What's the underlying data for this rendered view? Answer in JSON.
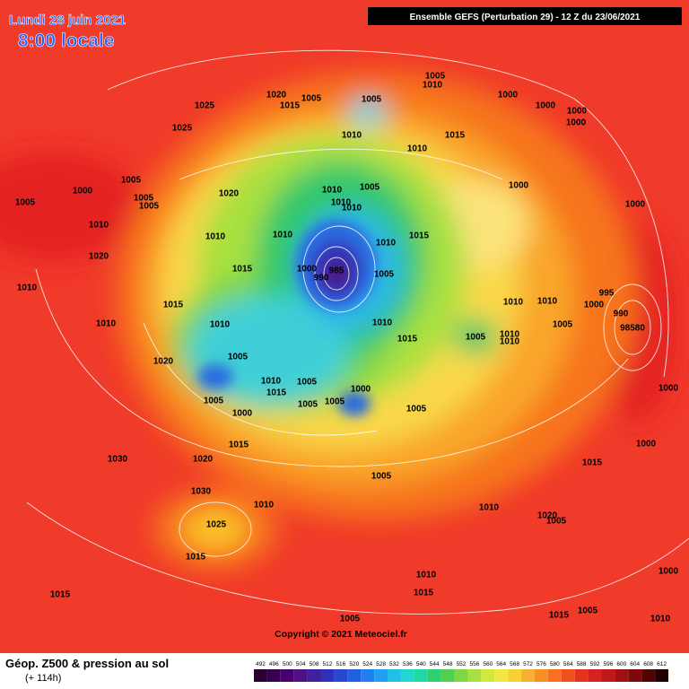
{
  "header": {
    "date": "Lundi 28 juin 2021",
    "time": "8:00 locale",
    "run": "Ensemble GEFS  (Perturbation 29)  -  12 Z du 23/06/2021"
  },
  "footer": {
    "title": "Géop. Z500 & pression au sol",
    "lead": "(+ 114h)",
    "copyright": "Copyright © 2021 Meteociel.fr"
  },
  "colorbar": {
    "ticks": [
      492,
      496,
      500,
      504,
      508,
      512,
      516,
      520,
      524,
      528,
      532,
      536,
      540,
      544,
      548,
      552,
      556,
      560,
      564,
      568,
      572,
      576,
      580,
      584,
      588,
      592,
      596,
      600,
      604,
      608,
      612
    ]
  },
  "pressure_labels": [
    "1005",
    "1010",
    "1020",
    "1005",
    "1005",
    "1015",
    "1025",
    "1000",
    "1000",
    "1000",
    "1000",
    "1025",
    "1010",
    "1015",
    "1010",
    "1005",
    "1000",
    "1005",
    "1005",
    "1005",
    "1020",
    "1010",
    "1005",
    "1000",
    "1000",
    "1010",
    "1010",
    "1010",
    "1010",
    "1010",
    "1010",
    "1015",
    "1020",
    "1015",
    "1000",
    "985",
    "990",
    "1005",
    "1010",
    "995",
    "1000",
    "1015",
    "1010",
    "1010",
    "990",
    "1010",
    "1010",
    "1010",
    "1005",
    "1010",
    "1010",
    "1005",
    "98580",
    "1015",
    "1020",
    "1005",
    "1010",
    "1015",
    "1005",
    "1000",
    "1005",
    "1005",
    "1005",
    "1000",
    "1000",
    "1005",
    "1015",
    "1030",
    "1020",
    "1000",
    "1005",
    "1010",
    "1010",
    "1030",
    "1025",
    "1015",
    "1020",
    "1005",
    "1000",
    "1010",
    "1015",
    "1015",
    "1015",
    "1005",
    "1005",
    "1010",
    "1015"
  ]
}
